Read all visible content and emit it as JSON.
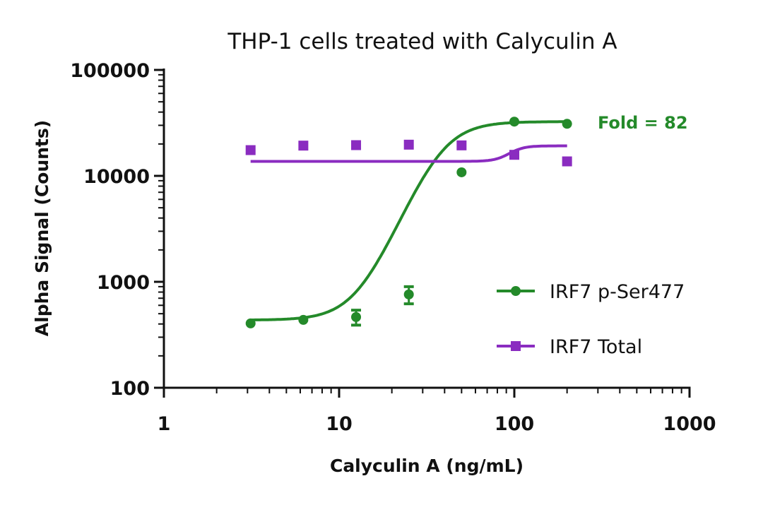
{
  "chart_data": {
    "type": "scatter",
    "title": "THP-1 cells treated with Calyculin A",
    "xlabel": "Calyculin A (ng/mL)",
    "ylabel": "Alpha Signal (Counts)",
    "xscale": "log",
    "yscale": "log",
    "xlim": [
      1,
      1000
    ],
    "ylim": [
      100,
      100000
    ],
    "xticks": [
      "1",
      "10",
      "100",
      "1000"
    ],
    "yticks": [
      "100",
      "1000",
      "10000",
      "100000"
    ],
    "grid": false,
    "legend_placement": "bottom-right",
    "annotation": "Fold = 82",
    "series": [
      {
        "name": "IRF7 p-Ser477",
        "color": "#248a2a",
        "marker": "circle",
        "x": [
          3.125,
          6.25,
          12.5,
          25,
          50,
          100,
          200
        ],
        "y": [
          405,
          437,
          465,
          760,
          10800,
          32500,
          31000
        ],
        "yerr": [
          0,
          0,
          75,
          140,
          0,
          0,
          0
        ],
        "fit": {
          "bottom": 435,
          "top": 32500,
          "ec50": 38,
          "hill": 4
        }
      },
      {
        "name": "IRF7 Total",
        "color": "#8a2cc0",
        "marker": "square",
        "x": [
          3.125,
          6.25,
          12.5,
          25,
          50,
          100,
          200
        ],
        "y": [
          17500,
          19300,
          19500,
          19700,
          19400,
          15800,
          13700
        ],
        "yerr": [
          0,
          0,
          0,
          0,
          0,
          0,
          0
        ],
        "fit": {
          "bottom": 13700,
          "top": 19200,
          "ec50": 95,
          "hill": 10
        }
      }
    ]
  }
}
